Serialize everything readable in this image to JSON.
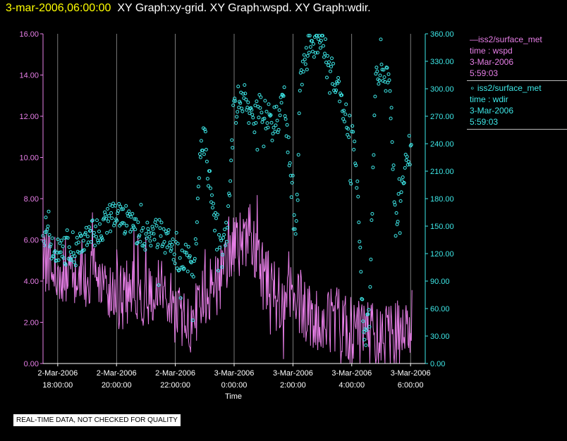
{
  "header": {
    "timestamp": "3-mar-2006,06:00:00",
    "graphs": "XY Graph:xy-grid.  XY Graph:wspd.  XY Graph:wdir."
  },
  "legend": {
    "wspd": {
      "source": "—iss2/surface_met",
      "var": "time : wspd",
      "date": "3-Mar-2006",
      "time": "5:59:03"
    },
    "wdir": {
      "source": "∘ iss2/surface_met",
      "var": "time : wdir",
      "date": "3-Mar-2006",
      "time": "5:59:03"
    }
  },
  "disclaimer": "REAL-TIME DATA, NOT CHECKED FOR QUALITY",
  "colors": {
    "wspd": "#e87fe8",
    "wdir": "#3ee8e8",
    "grid": "#ffffff",
    "background": "#000000",
    "timestamp": "#ffff00"
  },
  "chart_data": {
    "type": "line",
    "xlabel": "Time",
    "x_range_hours": [
      -6.5,
      6.5
    ],
    "x_tick_hours": [
      -6,
      -4,
      -2,
      0,
      2,
      4,
      6
    ],
    "x_ticks": [
      {
        "l1": "2-Mar-2006",
        "l2": "18:00:00"
      },
      {
        "l1": "2-Mar-2006",
        "l2": "20:00:00"
      },
      {
        "l1": "2-Mar-2006",
        "l2": "22:00:00"
      },
      {
        "l1": "3-Mar-2006",
        "l2": "0:00:00"
      },
      {
        "l1": "3-Mar-2006",
        "l2": "2:00:00"
      },
      {
        "l1": "3-Mar-2006",
        "l2": "4:00:00"
      },
      {
        "l1": "3-Mar-2006",
        "l2": "6:00:00"
      }
    ],
    "left_axis": {
      "name": "wspd",
      "ylim": [
        0,
        16
      ],
      "ticks": [
        "0.00",
        "2.00",
        "4.00",
        "6.00",
        "8.00",
        "10.00",
        "12.00",
        "14.00",
        "16.00"
      ]
    },
    "right_axis": {
      "name": "wdir",
      "ylim": [
        0,
        360
      ],
      "ticks": [
        "0.00",
        "30.00",
        "60.00",
        "90.00",
        "120.00",
        "150.00",
        "180.00",
        "210.00",
        "240.00",
        "270.00",
        "300.00",
        "330.00",
        "360.00"
      ]
    },
    "series": [
      {
        "name": "wspd",
        "axis": "left",
        "style": "line",
        "anchors": [
          [
            -6.5,
            5.2
          ],
          [
            -6,
            4.5
          ],
          [
            -5.5,
            4.6
          ],
          [
            -5,
            4.4
          ],
          [
            -4.5,
            4.3
          ],
          [
            -4,
            3.0
          ],
          [
            -3.5,
            3.5
          ],
          [
            -3,
            3.2
          ],
          [
            -2.5,
            4.0
          ],
          [
            -2,
            2.5
          ],
          [
            -1.5,
            2.0
          ],
          [
            -1,
            3.0
          ],
          [
            -0.5,
            4.0
          ],
          [
            -0.2,
            5.6
          ],
          [
            0.3,
            6.0
          ],
          [
            0.5,
            6.8
          ],
          [
            0.8,
            5.2
          ],
          [
            1,
            4.0
          ],
          [
            1.5,
            3.0
          ],
          [
            2,
            3.5
          ],
          [
            2.5,
            2.5
          ],
          [
            3,
            2.0
          ],
          [
            3.5,
            2.0
          ],
          [
            4,
            1.5
          ],
          [
            4.5,
            1.4
          ],
          [
            5,
            1.2
          ],
          [
            5.5,
            1.3
          ],
          [
            6,
            2.0
          ]
        ]
      },
      {
        "name": "wdir",
        "axis": "right",
        "style": "points",
        "anchors": [
          [
            -6.5,
            135
          ],
          [
            -6,
            125
          ],
          [
            -5.5,
            120
          ],
          [
            -5,
            135
          ],
          [
            -4.5,
            150
          ],
          [
            -4,
            165
          ],
          [
            -3.5,
            150
          ],
          [
            -3,
            140
          ],
          [
            -2.5,
            145
          ],
          [
            -2,
            120
          ],
          [
            -1.5,
            110
          ],
          [
            -1.4,
            80
          ],
          [
            -1.1,
            250
          ],
          [
            -1,
            240
          ],
          [
            -0.6,
            140
          ],
          [
            -0.4,
            115
          ],
          [
            -0.2,
            160
          ],
          [
            0,
            285
          ],
          [
            0.3,
            292
          ],
          [
            0.5,
            278
          ],
          [
            1,
            278
          ],
          [
            1.3,
            258
          ],
          [
            1.7,
            290
          ],
          [
            1.9,
            215
          ],
          [
            2,
            170
          ],
          [
            2.1,
            130
          ],
          [
            2.25,
            300
          ],
          [
            2.5,
            340
          ],
          [
            2.8,
            357
          ],
          [
            3.2,
            340
          ],
          [
            3.5,
            300
          ],
          [
            3.8,
            270
          ],
          [
            4,
            250
          ],
          [
            4.2,
            200
          ],
          [
            4.4,
            30
          ],
          [
            4.6,
            45
          ],
          [
            4.8,
            300
          ],
          [
            5,
            330
          ],
          [
            5.3,
            300
          ],
          [
            5.5,
            150
          ],
          [
            5.7,
            200
          ],
          [
            5.9,
            230
          ],
          [
            6,
            235
          ]
        ]
      }
    ]
  }
}
